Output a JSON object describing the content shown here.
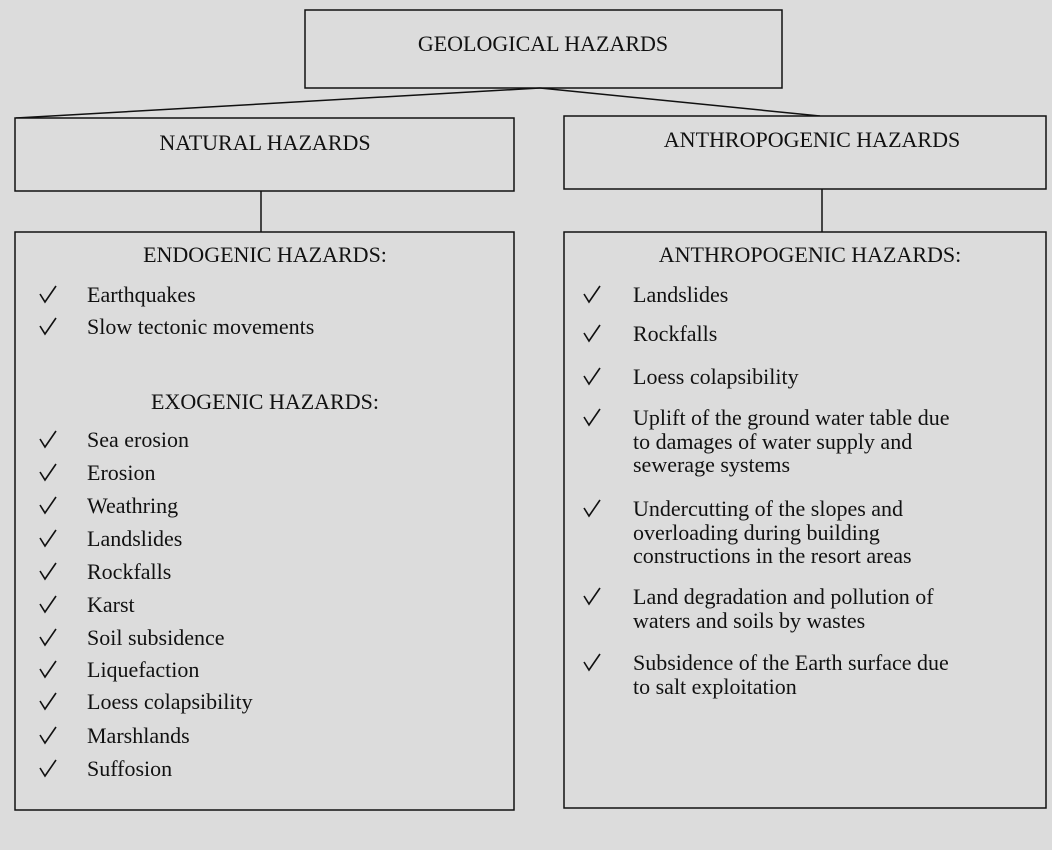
{
  "root": {
    "label": "GEOLOGICAL HAZARDS"
  },
  "branches": [
    {
      "label": "NATURAL HAZARDS",
      "groups": [
        {
          "heading": "ENDOGENIC HAZARDS:",
          "items": [
            [
              "Earthquakes"
            ],
            [
              "Slow tectonic movements"
            ]
          ]
        },
        {
          "heading": "EXOGENIC HAZARDS:",
          "items": [
            [
              "Sea erosion"
            ],
            [
              "Erosion"
            ],
            [
              "Weathring"
            ],
            [
              "Landslides"
            ],
            [
              "Rockfalls"
            ],
            [
              "Karst"
            ],
            [
              "Soil subsidence"
            ],
            [
              "Liquefaction"
            ],
            [
              "Loess colapsibility"
            ],
            [
              "Marshlands"
            ],
            [
              "Suffosion"
            ]
          ]
        }
      ]
    },
    {
      "label": "ANTHROPOGENIC HAZARDS",
      "groups": [
        {
          "heading": "ANTHROPOGENIC HAZARDS:",
          "items": [
            [
              "Landslides"
            ],
            [
              "Rockfalls"
            ],
            [
              "Loess colapsibility"
            ],
            [
              "Uplift of the ground water table due",
              "to damages of water supply and",
              "sewerage systems"
            ],
            [
              "Undercutting of the slopes and",
              "overloading during building",
              "constructions in the resort areas"
            ],
            [
              "Land degradation and pollution of",
              "waters and soils by wastes"
            ],
            [
              "Subsidence of the Earth surface due",
              "to salt exploitation"
            ]
          ]
        }
      ]
    }
  ]
}
